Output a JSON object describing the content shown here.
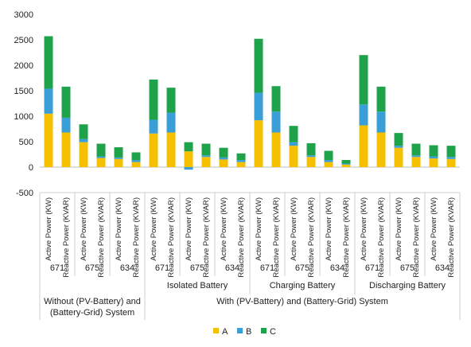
{
  "chart_data": {
    "type": "bar",
    "stacked": true,
    "title": "",
    "xlabel": "",
    "ylabel": "",
    "ylim": [
      -500,
      3000
    ],
    "yticks": [
      3000,
      2500,
      2000,
      1500,
      1000,
      500,
      0,
      -500
    ],
    "grid": false,
    "legend_position": "bottom",
    "colors": {
      "A": "#f5c000",
      "B": "#3a9fd6",
      "C": "#1fa34a"
    },
    "categories": [
      "Active Power (KW)",
      "Reactive Power (KVAR)",
      "Active Power (KW)",
      "Reactive Power (KVAR)",
      "Active Power (KW)",
      "Reactive Power (KVAR)",
      "Active Power (KW)",
      "Reactive Power (KVAR)",
      "Active Power (KW)",
      "Reactive Power (KVAR)",
      "Active Power (KW)",
      "Reactive Power (KVAR)",
      "Active Power (KW)",
      "Reactive Power (KVAR)",
      "Active Power (KW)",
      "Reactive Power (KVAR)",
      "Active Power (KW)",
      "Reactive Power (KVAR)",
      "Active Power (KW)",
      "Reactive Power (KVAR)",
      "Active Power (KW)",
      "Reactive Power (KVAR)",
      "Active Power (KW)",
      "Reactive Power (KVAR)"
    ],
    "bus_labels": [
      "671",
      "675",
      "634",
      "671",
      "675",
      "634",
      "671",
      "675",
      "634",
      "671",
      "675",
      "634"
    ],
    "scenario_labels": [
      "Isolated Battery",
      "Charging Battery",
      "Discharging Battery"
    ],
    "system_labels": [
      "Without (PV-Battery) and (Battery-Grid) System",
      "With (PV-Battery) and (Battery-Grid) System"
    ],
    "series": [
      {
        "name": "A",
        "values": [
          1050,
          680,
          490,
          180,
          160,
          100,
          660,
          680,
          310,
          200,
          150,
          100,
          920,
          680,
          420,
          200,
          100,
          50,
          820,
          680,
          380,
          200,
          170,
          160
        ]
      },
      {
        "name": "B",
        "values": [
          490,
          290,
          60,
          30,
          30,
          40,
          270,
          390,
          -50,
          30,
          40,
          40,
          540,
          410,
          70,
          30,
          40,
          20,
          410,
          410,
          40,
          30,
          40,
          40
        ]
      },
      {
        "name": "C",
        "values": [
          1030,
          610,
          290,
          250,
          200,
          150,
          790,
          490,
          180,
          230,
          190,
          130,
          1060,
          500,
          320,
          240,
          180,
          70,
          970,
          490,
          250,
          230,
          220,
          220
        ]
      }
    ]
  }
}
